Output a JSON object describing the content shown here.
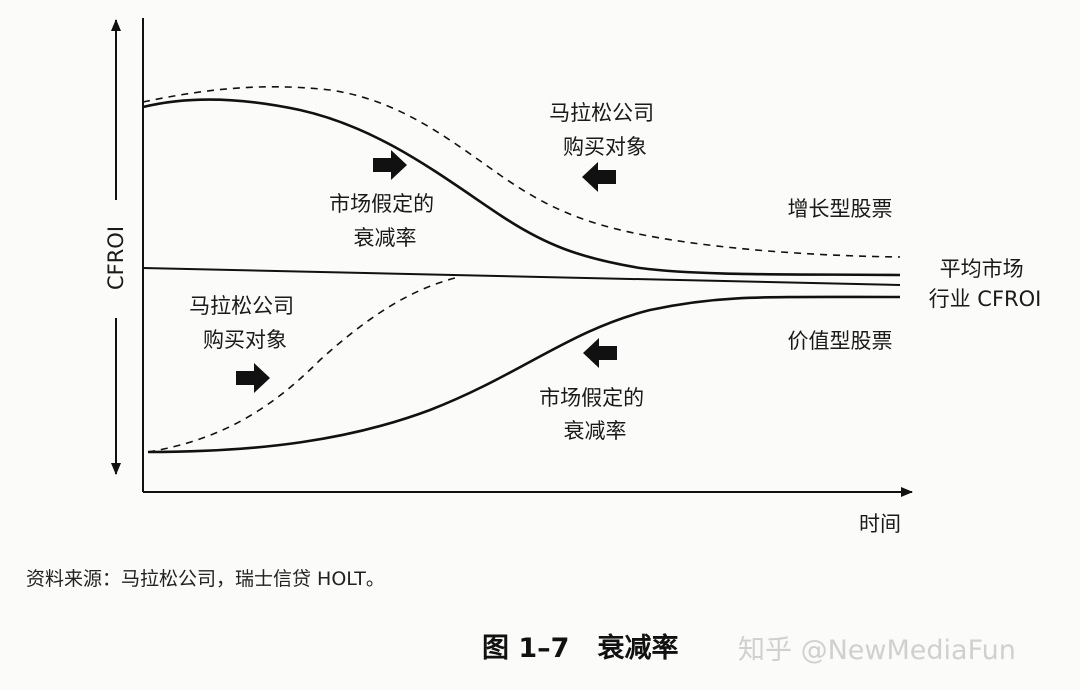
{
  "figure": {
    "y_axis_label": "CFROI",
    "x_axis_label": "时间",
    "labels": {
      "marathon_targets_top": [
        "马拉松公司",
        "购买对象"
      ],
      "market_fade_top": [
        "市场假定的",
        "衰减率"
      ],
      "growth_stocks": "增长型股票",
      "average_cfroi": [
        "平均市场",
        "行业 CFROI"
      ],
      "value_stocks": "价值型股票",
      "marathon_targets_bottom": [
        "马拉松公司",
        "购买对象"
      ],
      "market_fade_bottom": [
        "市场假定的",
        "衰减率"
      ]
    }
  },
  "source": "资料来源：马拉松公司，瑞士信贷 HOLT。",
  "caption": {
    "number": "图 1–7",
    "title": "衰减率"
  },
  "watermark": "知乎 @NewMediaFun"
}
